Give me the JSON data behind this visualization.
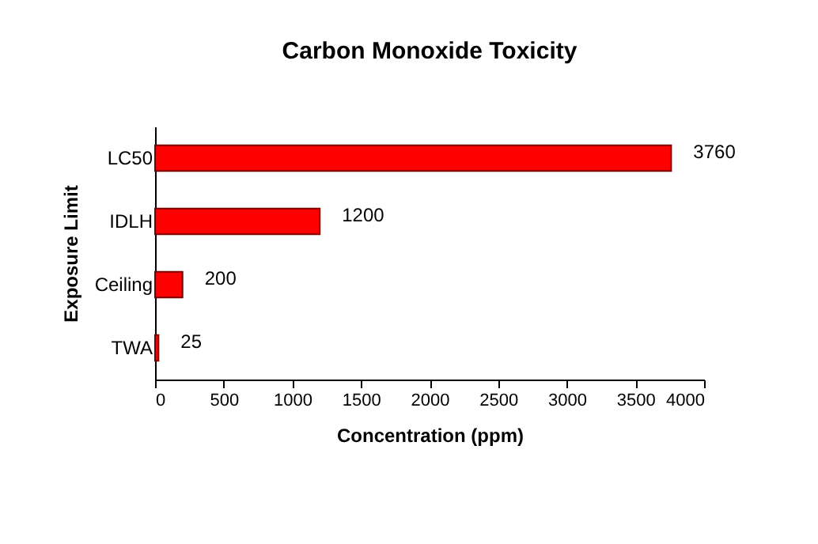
{
  "chart_data": {
    "type": "bar",
    "orientation": "horizontal",
    "title": "Carbon Monoxide Toxicity",
    "xlabel": "Concentration (ppm)",
    "ylabel": "Exposure Limit",
    "categories": [
      "LC50",
      "IDLH",
      "Ceiling",
      "TWA"
    ],
    "values": [
      3760,
      1200,
      200,
      25
    ],
    "color": "#ff0000",
    "xlim": [
      0,
      4000
    ],
    "xticks": [
      0,
      500,
      1000,
      1500,
      2000,
      2500,
      3000,
      3500,
      4000
    ],
    "data_labels": true,
    "grid": false
  }
}
